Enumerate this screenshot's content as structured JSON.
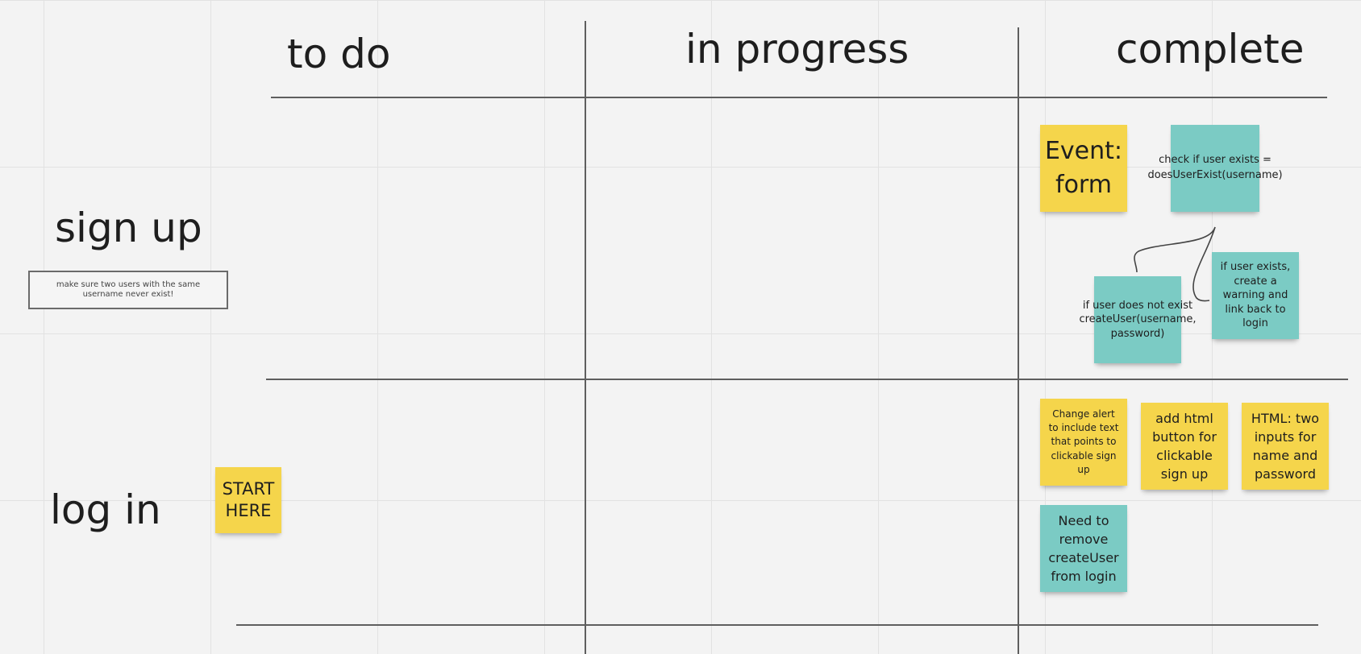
{
  "columns": {
    "todo": "to do",
    "in_progress": "in progress",
    "complete": "complete"
  },
  "rows": {
    "sign_up": "sign up",
    "log_in": "log in"
  },
  "sign_up_note": "make sure two users with the same username never exist!",
  "stickies": {
    "start_here": "START HERE",
    "event_form": "Event: form",
    "check_user": "check if user exists = doesUserExist(username)",
    "user_not_exist": "if user does not exist createUser(username, password)",
    "user_exists": "if user exists, create a warning and link back to login",
    "change_alert": "Change alert to include text that points to clickable sign up",
    "add_html_button": "add html button for clickable sign up",
    "html_inputs": "HTML: two inputs for name and password",
    "remove_create_user": "Need to remove createUser from login"
  },
  "colors": {
    "yellow_sticky": "#f5d54b",
    "teal_sticky": "#7bcbc4",
    "grid_line": "#5e5e5e",
    "canvas": "#f3f3f3"
  }
}
